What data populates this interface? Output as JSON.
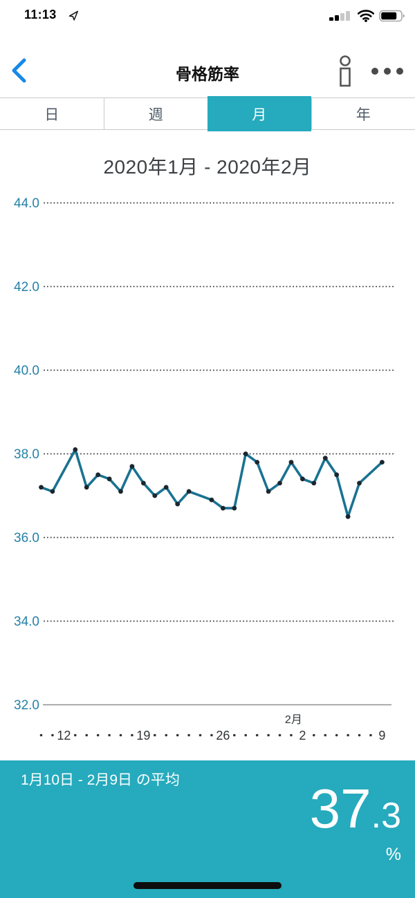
{
  "status_bar": {
    "time": "11:13"
  },
  "header": {
    "title": "骨格筋率"
  },
  "tabs": [
    {
      "label": "日",
      "selected": false
    },
    {
      "label": "週",
      "selected": false
    },
    {
      "label": "月",
      "selected": true
    },
    {
      "label": "年",
      "selected": false
    }
  ],
  "chart_data": {
    "type": "line",
    "title": "2020年1月 - 2020年2月",
    "ylabel": "",
    "xlabel": "",
    "ylim": [
      32,
      44.9
    ],
    "y_ticks": [
      44.0,
      42.0,
      40.0,
      38.0,
      36.0,
      34.0,
      32.0
    ],
    "grid": "dotted-horizontal, solid bottom axis",
    "legend": "none",
    "x_axis": {
      "start_date": "1月10日",
      "end_date": "2月9日",
      "total_days": 31,
      "tick_labels": [
        {
          "label": "12",
          "offset": 2
        },
        {
          "label": "19",
          "offset": 9
        },
        {
          "label": "26",
          "offset": 16
        },
        {
          "label": "2",
          "offset": 23,
          "month_label": "2月"
        },
        {
          "label": "9",
          "offset": 30
        }
      ]
    },
    "series": [
      {
        "name": "骨格筋率",
        "points": [
          {
            "date": "1/10",
            "offset": 0,
            "value": 37.2
          },
          {
            "date": "1/11",
            "offset": 1,
            "value": 37.1
          },
          {
            "date": "1/13",
            "offset": 3,
            "value": 38.1
          },
          {
            "date": "1/14",
            "offset": 4,
            "value": 37.2
          },
          {
            "date": "1/15",
            "offset": 5,
            "value": 37.5
          },
          {
            "date": "1/16",
            "offset": 6,
            "value": 37.4
          },
          {
            "date": "1/17",
            "offset": 7,
            "value": 37.1
          },
          {
            "date": "1/18",
            "offset": 8,
            "value": 37.7
          },
          {
            "date": "1/19",
            "offset": 9,
            "value": 37.3
          },
          {
            "date": "1/20",
            "offset": 10,
            "value": 37.0
          },
          {
            "date": "1/21",
            "offset": 11,
            "value": 37.2
          },
          {
            "date": "1/22",
            "offset": 12,
            "value": 36.8
          },
          {
            "date": "1/23",
            "offset": 13,
            "value": 37.1
          },
          {
            "date": "1/25",
            "offset": 15,
            "value": 36.9
          },
          {
            "date": "1/26",
            "offset": 16,
            "value": 36.7
          },
          {
            "date": "1/27",
            "offset": 17,
            "value": 36.7
          },
          {
            "date": "1/28",
            "offset": 18,
            "value": 38.0
          },
          {
            "date": "1/29",
            "offset": 19,
            "value": 37.8
          },
          {
            "date": "1/30",
            "offset": 20,
            "value": 37.1
          },
          {
            "date": "1/31",
            "offset": 21,
            "value": 37.3
          },
          {
            "date": "2/1",
            "offset": 22,
            "value": 37.8
          },
          {
            "date": "2/2",
            "offset": 23,
            "value": 37.4
          },
          {
            "date": "2/3",
            "offset": 24,
            "value": 37.3
          },
          {
            "date": "2/4",
            "offset": 25,
            "value": 37.9
          },
          {
            "date": "2/5",
            "offset": 26,
            "value": 37.5
          },
          {
            "date": "2/6",
            "offset": 27,
            "value": 36.5
          },
          {
            "date": "2/7",
            "offset": 28,
            "value": 37.3
          },
          {
            "date": "2/9",
            "offset": 30,
            "value": 37.8
          }
        ]
      }
    ]
  },
  "summary": {
    "period_label": "1月10日 - 2月9日 の平均",
    "average_value": "37.3",
    "average_int": "37",
    "average_dec": ".3",
    "unit": "%"
  },
  "icons": {
    "back": "chevron-left",
    "info": "person-info-outline",
    "more": "horizontal-ellipsis",
    "location": "location-arrow",
    "signal": "cellular-signal-2of4",
    "wifi": "wifi-full",
    "battery": "battery-75",
    "home": "home-indicator-bar"
  },
  "colors": {
    "accent_teal": "#26aabd",
    "nav_blue": "#1789e8",
    "line_color": "#1a7291",
    "point_color": "#1b2730",
    "y_label_color": "#2581a6",
    "grid_dot_color": "#4a4a4a",
    "x_label_color": "#2f3437"
  }
}
